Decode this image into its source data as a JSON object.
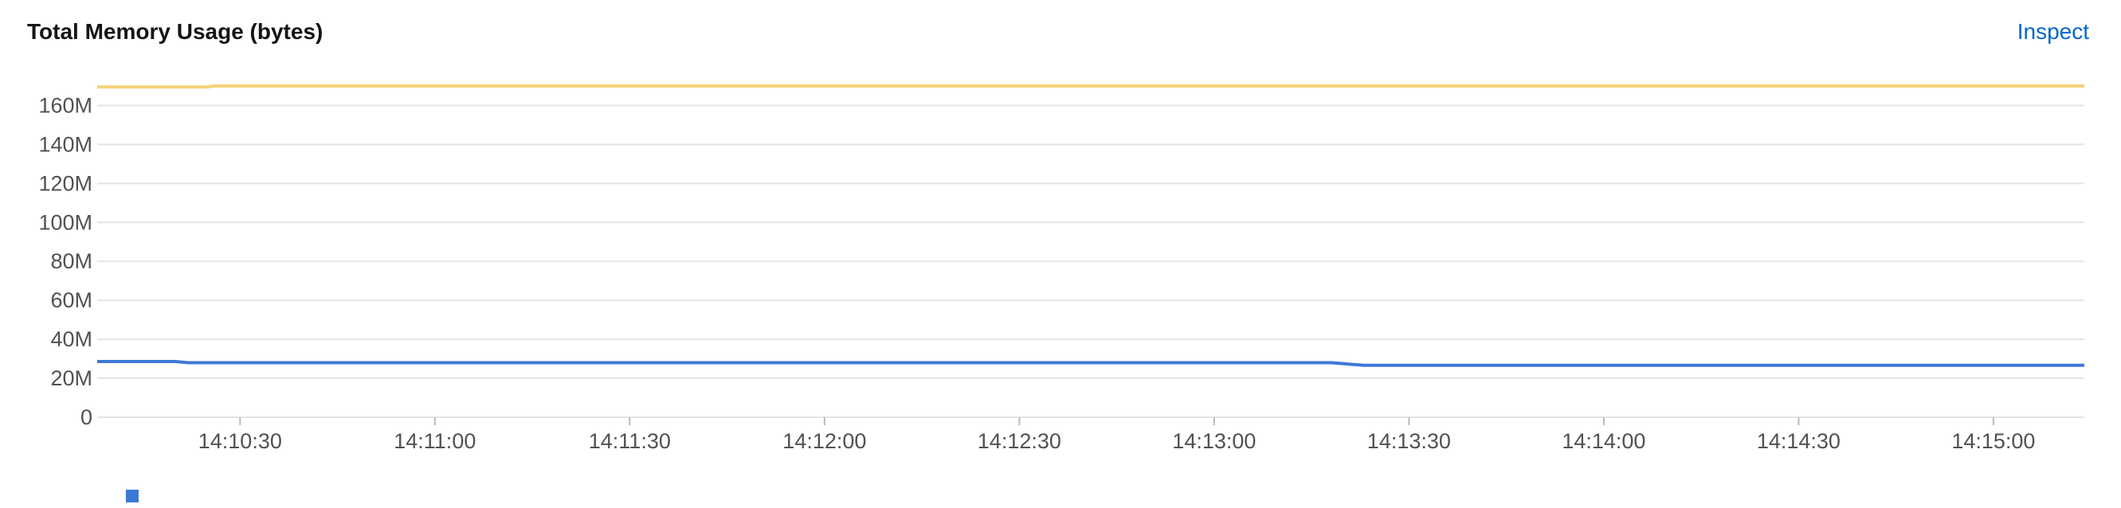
{
  "card": {
    "title": "Total Memory Usage (bytes)",
    "inspect_label": "Inspect"
  },
  "colors": {
    "series_used": "#3e78d6",
    "series_limit": "#f5d37a",
    "grid": "#e4e4e4",
    "link": "#0066cc"
  },
  "chart_data": {
    "type": "line",
    "title": "Total Memory Usage (bytes)",
    "xlabel": "",
    "ylabel": "",
    "ylim": [
      0,
      170000000
    ],
    "xlim": [
      "14:10:08",
      "14:15:14"
    ],
    "y_ticks": [
      {
        "value": 0,
        "label": "0"
      },
      {
        "value": 20000000,
        "label": "20M"
      },
      {
        "value": 40000000,
        "label": "40M"
      },
      {
        "value": 60000000,
        "label": "60M"
      },
      {
        "value": 80000000,
        "label": "80M"
      },
      {
        "value": 100000000,
        "label": "100M"
      },
      {
        "value": 120000000,
        "label": "120M"
      },
      {
        "value": 140000000,
        "label": "140M"
      },
      {
        "value": 160000000,
        "label": "160M"
      }
    ],
    "x_ticks": [
      "14:10:30",
      "14:11:00",
      "14:11:30",
      "14:12:00",
      "14:12:30",
      "14:13:00",
      "14:13:30",
      "14:14:00",
      "14:14:30",
      "14:15:00"
    ],
    "grid": true,
    "legend_position": "bottom-left",
    "series": [
      {
        "color": "#f5d37a",
        "points": [
          {
            "x": "14:10:08",
            "y": 169500000
          },
          {
            "x": "14:10:25",
            "y": 169500000
          },
          {
            "x": "14:10:26",
            "y": 170000000
          },
          {
            "x": "14:15:14",
            "y": 170000000
          }
        ]
      },
      {
        "color": "#3e78d6",
        "points": [
          {
            "x": "14:10:08",
            "y": 28600000
          },
          {
            "x": "14:10:20",
            "y": 28600000
          },
          {
            "x": "14:10:22",
            "y": 28000000
          },
          {
            "x": "14:13:18",
            "y": 28000000
          },
          {
            "x": "14:13:23",
            "y": 26700000
          },
          {
            "x": "14:15:14",
            "y": 26700000
          }
        ]
      }
    ],
    "legend": [
      {
        "label": "",
        "color": "#3e78d6"
      }
    ]
  }
}
